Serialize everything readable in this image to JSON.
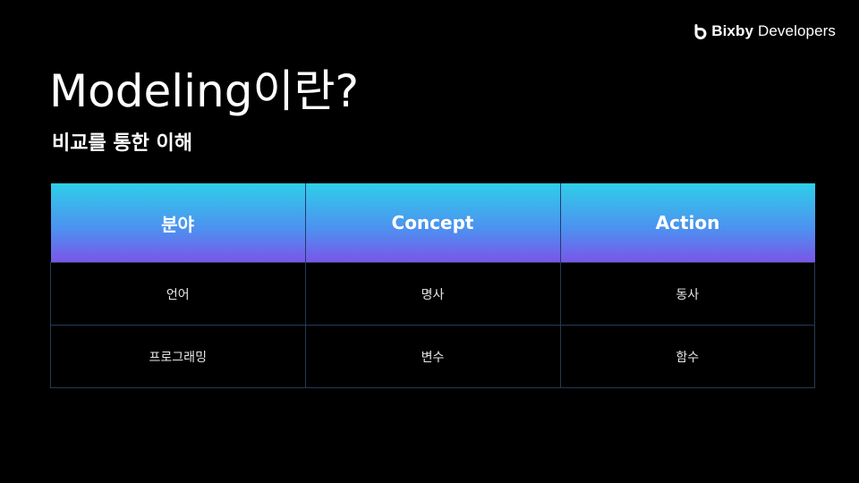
{
  "brand": {
    "name": "Bixby",
    "suffix": "Developers",
    "logo_icon": "bixby-logo-icon"
  },
  "slide": {
    "title": "Modeling이란?",
    "subtitle": "비교를 통한 이해"
  },
  "table": {
    "headers": [
      "분야",
      "Concept",
      "Action"
    ],
    "rows": [
      [
        "언어",
        "명사",
        "동사"
      ],
      [
        "프로그래밍",
        "변수",
        "함수"
      ]
    ]
  },
  "colors": {
    "background": "#000000",
    "header_gradient_top": "#2ecfe8",
    "header_gradient_mid": "#4f8ef0",
    "header_gradient_bottom": "#7a55e8",
    "cell_border": "#253a56",
    "text": "#ffffff"
  }
}
